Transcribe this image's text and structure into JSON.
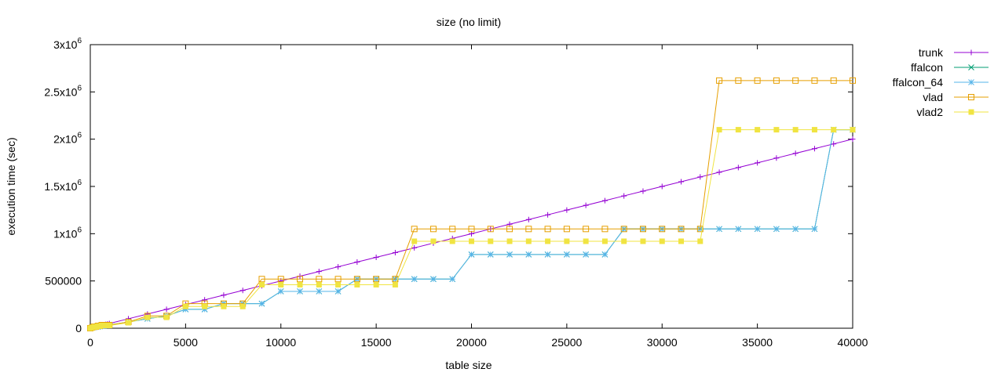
{
  "chart_data": {
    "type": "line",
    "title": "size (no limit)",
    "xlabel": "table size",
    "ylabel": "execution time (sec)",
    "xlim": [
      0,
      40000
    ],
    "ylim": [
      0,
      3000000
    ],
    "grid": false,
    "legend_position": "right, outside plot",
    "x_ticks": [
      {
        "value": 0,
        "label": "0"
      },
      {
        "value": 5000,
        "label": "5000"
      },
      {
        "value": 10000,
        "label": "10000"
      },
      {
        "value": 15000,
        "label": "15000"
      },
      {
        "value": 20000,
        "label": "20000"
      },
      {
        "value": 25000,
        "label": "25000"
      },
      {
        "value": 30000,
        "label": "30000"
      },
      {
        "value": 35000,
        "label": "35000"
      },
      {
        "value": 40000,
        "label": "40000"
      }
    ],
    "y_ticks": [
      {
        "value": 0,
        "label": "0"
      },
      {
        "value": 500000,
        "label": "500000"
      },
      {
        "value": 1000000,
        "label": "1x10",
        "sup": "6"
      },
      {
        "value": 1500000,
        "label": "1.5x10",
        "sup": "6"
      },
      {
        "value": 2000000,
        "label": "2x10",
        "sup": "6"
      },
      {
        "value": 2500000,
        "label": "2.5x10",
        "sup": "6"
      },
      {
        "value": 3000000,
        "label": "3x10",
        "sup": "6"
      }
    ],
    "x": [
      0,
      100,
      200,
      300,
      400,
      500,
      600,
      700,
      800,
      900,
      1000,
      2000,
      3000,
      4000,
      5000,
      6000,
      7000,
      8000,
      9000,
      10000,
      11000,
      12000,
      13000,
      14000,
      15000,
      16000,
      17000,
      18000,
      19000,
      20000,
      21000,
      22000,
      23000,
      24000,
      25000,
      26000,
      27000,
      28000,
      29000,
      30000,
      31000,
      32000,
      33000,
      34000,
      35000,
      36000,
      37000,
      38000,
      39000,
      40000
    ],
    "series": [
      {
        "name": "trunk",
        "color": "#9400d3",
        "marker": "plus",
        "values": [
          0,
          5000,
          10000,
          15000,
          20000,
          25000,
          30000,
          35000,
          40000,
          45000,
          50000,
          100000,
          150000,
          200000,
          250000,
          300000,
          350000,
          400000,
          450000,
          500000,
          550000,
          600000,
          650000,
          700000,
          750000,
          800000,
          850000,
          900000,
          950000,
          1000000,
          1050000,
          1100000,
          1150000,
          1200000,
          1250000,
          1300000,
          1350000,
          1400000,
          1450000,
          1500000,
          1550000,
          1600000,
          1650000,
          1700000,
          1750000,
          1800000,
          1850000,
          1900000,
          1950000,
          2000000
        ]
      },
      {
        "name": "ffalcon",
        "color": "#009e73",
        "marker": "cross",
        "values": [
          0,
          5000,
          10000,
          15000,
          15000,
          20000,
          25000,
          25000,
          30000,
          30000,
          35000,
          65000,
          100000,
          130000,
          200000,
          200000,
          260000,
          260000,
          260000,
          390000,
          390000,
          390000,
          390000,
          520000,
          520000,
          520000,
          520000,
          520000,
          520000,
          780000,
          780000,
          780000,
          780000,
          780000,
          780000,
          780000,
          780000,
          1050000,
          1050000,
          1050000,
          1050000,
          1050000,
          1050000,
          1050000,
          1050000,
          1050000,
          1050000,
          1050000,
          2100000,
          2100000
        ]
      },
      {
        "name": "ffalcon_64",
        "color": "#56b4e9",
        "marker": "star",
        "values": [
          0,
          5000,
          10000,
          15000,
          15000,
          20000,
          25000,
          25000,
          30000,
          30000,
          35000,
          65000,
          100000,
          130000,
          200000,
          200000,
          260000,
          260000,
          260000,
          390000,
          390000,
          390000,
          390000,
          520000,
          520000,
          520000,
          520000,
          520000,
          520000,
          780000,
          780000,
          780000,
          780000,
          780000,
          780000,
          780000,
          780000,
          1050000,
          1050000,
          1050000,
          1050000,
          1050000,
          1050000,
          1050000,
          1050000,
          1050000,
          1050000,
          1050000,
          2100000,
          2100000
        ]
      },
      {
        "name": "vlad",
        "color": "#e69f00",
        "marker": "square-open",
        "values": [
          0,
          8000,
          16000,
          16000,
          25000,
          25000,
          33000,
          33000,
          33000,
          33000,
          33000,
          66000,
          130000,
          130000,
          260000,
          260000,
          260000,
          260000,
          520000,
          520000,
          520000,
          520000,
          520000,
          520000,
          520000,
          520000,
          1050000,
          1050000,
          1050000,
          1050000,
          1050000,
          1050000,
          1050000,
          1050000,
          1050000,
          1050000,
          1050000,
          1050000,
          1050000,
          1050000,
          1050000,
          1050000,
          2620000,
          2620000,
          2620000,
          2620000,
          2620000,
          2620000,
          2620000,
          2620000
        ]
      },
      {
        "name": "vlad2",
        "color": "#f0e442",
        "marker": "square-filled",
        "values": [
          0,
          7000,
          14000,
          14000,
          22000,
          22000,
          29000,
          29000,
          29000,
          29000,
          29000,
          58000,
          115000,
          115000,
          230000,
          230000,
          230000,
          230000,
          460000,
          460000,
          460000,
          460000,
          460000,
          460000,
          460000,
          460000,
          920000,
          920000,
          920000,
          920000,
          920000,
          920000,
          920000,
          920000,
          920000,
          920000,
          920000,
          920000,
          920000,
          920000,
          920000,
          920000,
          2100000,
          2100000,
          2100000,
          2100000,
          2100000,
          2100000,
          2100000,
          2100000
        ]
      }
    ]
  }
}
